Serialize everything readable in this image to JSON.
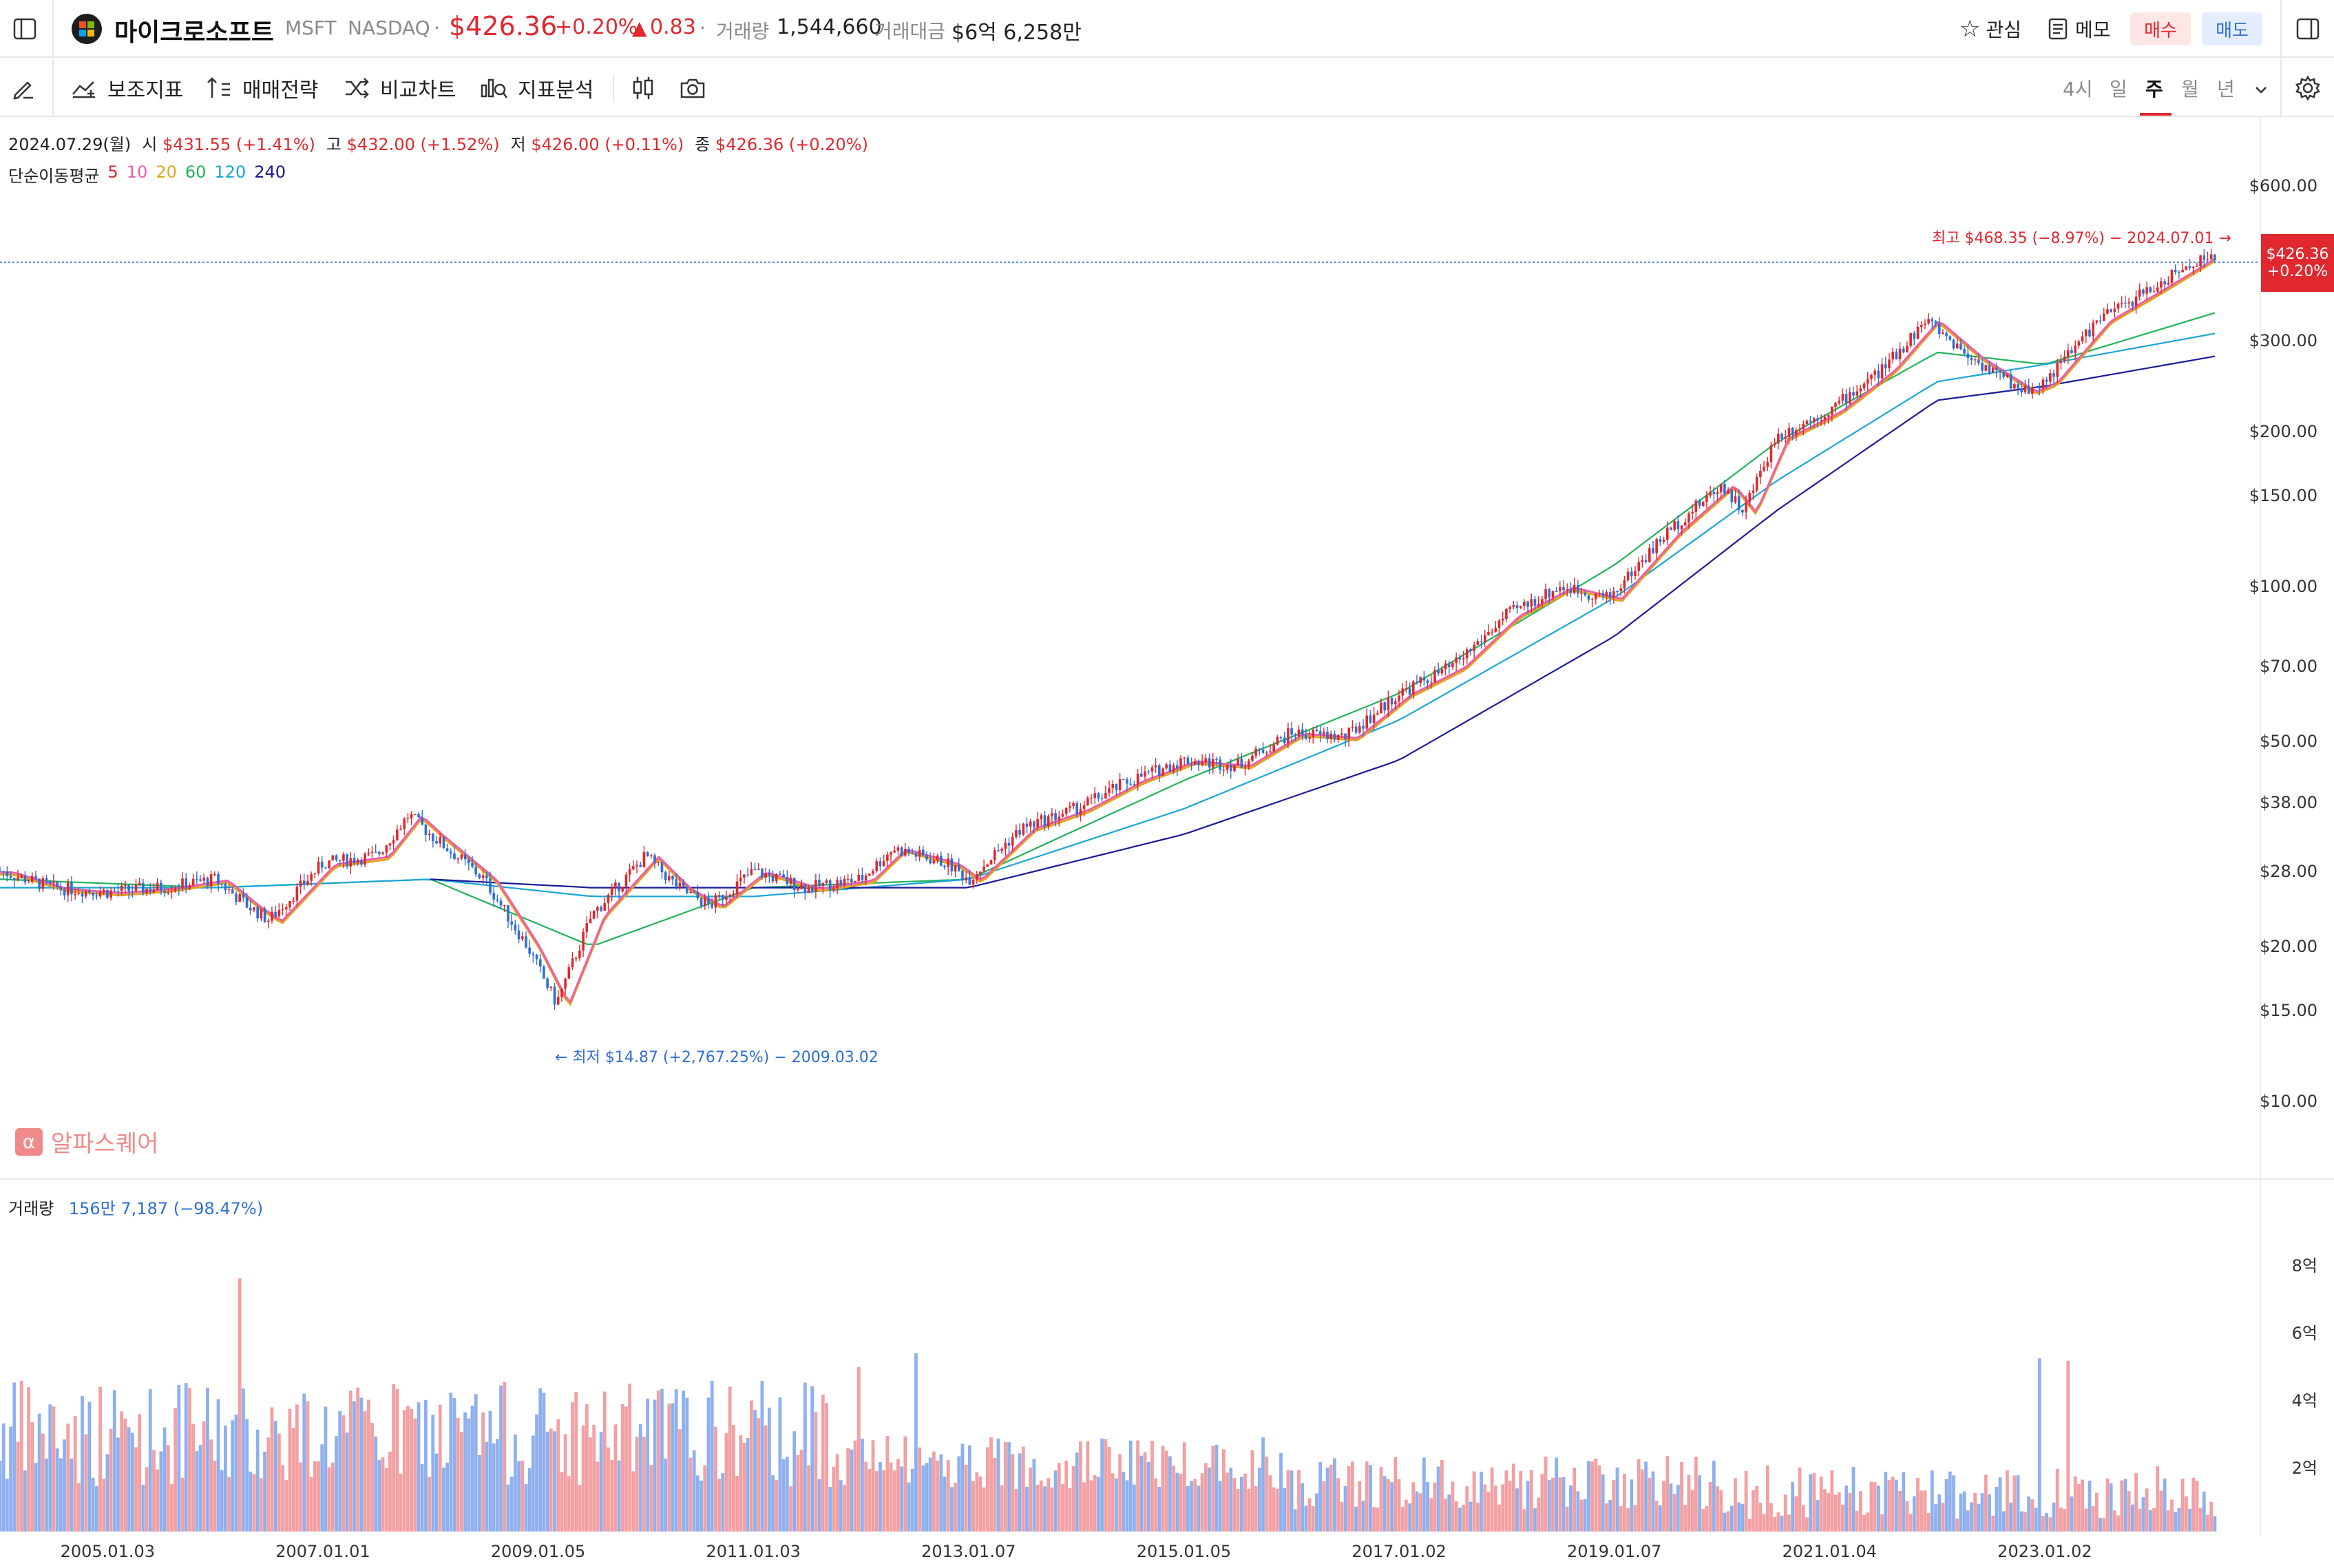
{
  "header": {
    "name": "마이크로소프트",
    "ticker": "MSFT",
    "exchange": "NASDAQ",
    "dot": "·",
    "price": "$426.36",
    "change_pct": "+0.20%",
    "change_abs": "0.83",
    "volume_label": "거래량",
    "volume_value": "1,544,660",
    "amount_label": "거래대금",
    "amount_value": "$6억 6,258만",
    "watch_label": "관심",
    "memo_label": "메모",
    "buy_label": "매수",
    "sell_label": "매도"
  },
  "toolbar": {
    "indicators": "보조지표",
    "strategy": "매매전략",
    "compare": "비교차트",
    "analysis": "지표분석",
    "periods": [
      "4시",
      "일",
      "주",
      "월",
      "년"
    ],
    "active_period": "주"
  },
  "ohlc": {
    "date": "2024.07.29(월)",
    "open_label": "시",
    "open": "$431.55 (+1.41%)",
    "high_label": "고",
    "high": "$432.00 (+1.52%)",
    "low_label": "저",
    "low": "$426.00 (+0.11%)",
    "close_label": "종",
    "close": "$426.36 (+0.20%)"
  },
  "ma": {
    "label": "단순이동평균",
    "periods": [
      {
        "label": "5",
        "color": "#d9252b"
      },
      {
        "label": "10",
        "color": "#ef5da8"
      },
      {
        "label": "20",
        "color": "#e1a51b"
      },
      {
        "label": "60",
        "color": "#21b35a"
      },
      {
        "label": "120",
        "color": "#1aa6d6"
      },
      {
        "label": "240",
        "color": "#1b1b9a"
      }
    ]
  },
  "annotations": {
    "high": "최고 $468.35 (−8.97%) − 2024.07.01",
    "low": "최저 $14.87 (+2,767.25%) − 2009.03.02",
    "price_tag": "$426.36",
    "price_tag_pct": "+0.20%"
  },
  "brand": "알파스퀘어",
  "volume_panel": {
    "label": "거래량",
    "value": "156만 7,187 (−98.47%)"
  },
  "colors": {
    "up": "#e0282e",
    "down": "#2f6fd6",
    "up_bar": "#f2a0a3",
    "down_bar": "#8fb0ee"
  },
  "chart_data": {
    "type": "line",
    "scale": "log",
    "y_ticks": [
      "$600.00",
      "$300.00",
      "$200.00",
      "$150.00",
      "$100.00",
      "$70.00",
      "$50.00",
      "$38.00",
      "$28.00",
      "$20.00",
      "$15.00",
      "$10.00"
    ],
    "y_tick_values": [
      600,
      300,
      200,
      150,
      100,
      70,
      50,
      38,
      28,
      20,
      15,
      10
    ],
    "volume_ticks": [
      "8억",
      "6억",
      "4억",
      "2억"
    ],
    "volume_tick_values": [
      8,
      6,
      4,
      2
    ],
    "x_ticks": [
      "2005.01.03",
      "2007.01.01",
      "2009.01.05",
      "2011.01.03",
      "2013.01.07",
      "2015.01.05",
      "2017.01.02",
      "2019.01.07",
      "2021.01.04",
      "2023.01.02"
    ],
    "price_series": {
      "name": "종가",
      "x": [
        2004.0,
        2004.5,
        2005.0,
        2005.5,
        2006.0,
        2006.3,
        2006.5,
        2007.0,
        2007.5,
        2007.8,
        2008.0,
        2008.5,
        2008.9,
        2009.17,
        2009.5,
        2010.0,
        2010.3,
        2010.6,
        2011.0,
        2011.5,
        2012.0,
        2012.3,
        2012.8,
        2013.0,
        2013.5,
        2014.0,
        2014.5,
        2015.0,
        2015.5,
        2016.0,
        2016.5,
        2017.0,
        2017.5,
        2018.0,
        2018.5,
        2018.95,
        2019.5,
        2020.0,
        2020.2,
        2020.5,
        2021.0,
        2021.5,
        2021.9,
        2022.3,
        2022.8,
        2023.0,
        2023.5,
        2024.0,
        2024.5,
        2024.58
      ],
      "y": [
        28,
        26,
        25.5,
        26,
        27,
        24,
        22.5,
        29,
        30,
        36,
        33,
        27,
        20,
        15.5,
        23,
        30,
        26,
        24,
        28,
        26,
        27,
        31,
        29,
        27,
        34,
        37,
        42,
        46,
        45,
        52,
        51,
        62,
        70,
        88,
        100,
        95,
        128,
        158,
        140,
        195,
        220,
        265,
        330,
        280,
        240,
        250,
        330,
        380,
        440,
        426.36
      ]
    },
    "ma_series": [
      {
        "name": "60",
        "x": [
          2004,
          2006,
          2008,
          2009.5,
          2011,
          2013,
          2015,
          2017,
          2019,
          2020.5,
          2022,
          2023,
          2024.58
        ],
        "y": [
          27,
          26,
          27,
          20,
          26,
          27,
          42,
          62,
          110,
          190,
          285,
          270,
          340
        ]
      },
      {
        "name": "120",
        "x": [
          2004,
          2006,
          2008,
          2009.5,
          2011,
          2013,
          2015,
          2017,
          2019,
          2020.5,
          2022,
          2023,
          2024.58
        ],
        "y": [
          26,
          26,
          27,
          25,
          25,
          27,
          37,
          55,
          95,
          160,
          250,
          270,
          310
        ]
      },
      {
        "name": "240",
        "x": [
          2008,
          2009.5,
          2011,
          2013,
          2015,
          2017,
          2019,
          2020.5,
          2022,
          2023,
          2024.58
        ],
        "y": [
          27,
          26,
          26,
          26,
          33,
          46,
          80,
          140,
          230,
          245,
          280
        ]
      }
    ]
  }
}
